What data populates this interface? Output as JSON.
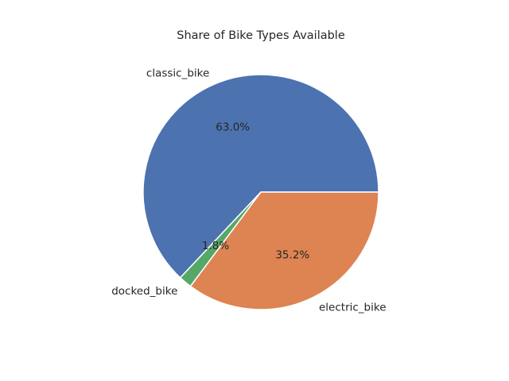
{
  "chart_data": {
    "type": "pie",
    "title": "Share of Bike Types Available",
    "slices": [
      {
        "label": "classic_bike",
        "value": 63.0,
        "pct_label": "63.0%",
        "color": "#4c72b0"
      },
      {
        "label": "docked_bike",
        "value": 1.8,
        "pct_label": "1.8%",
        "color": "#55a868"
      },
      {
        "label": "electric_bike",
        "value": 35.2,
        "pct_label": "35.2%",
        "color": "#dd8452"
      }
    ],
    "start_angle_deg": 0,
    "direction": "counterclockwise",
    "legend": "none"
  }
}
